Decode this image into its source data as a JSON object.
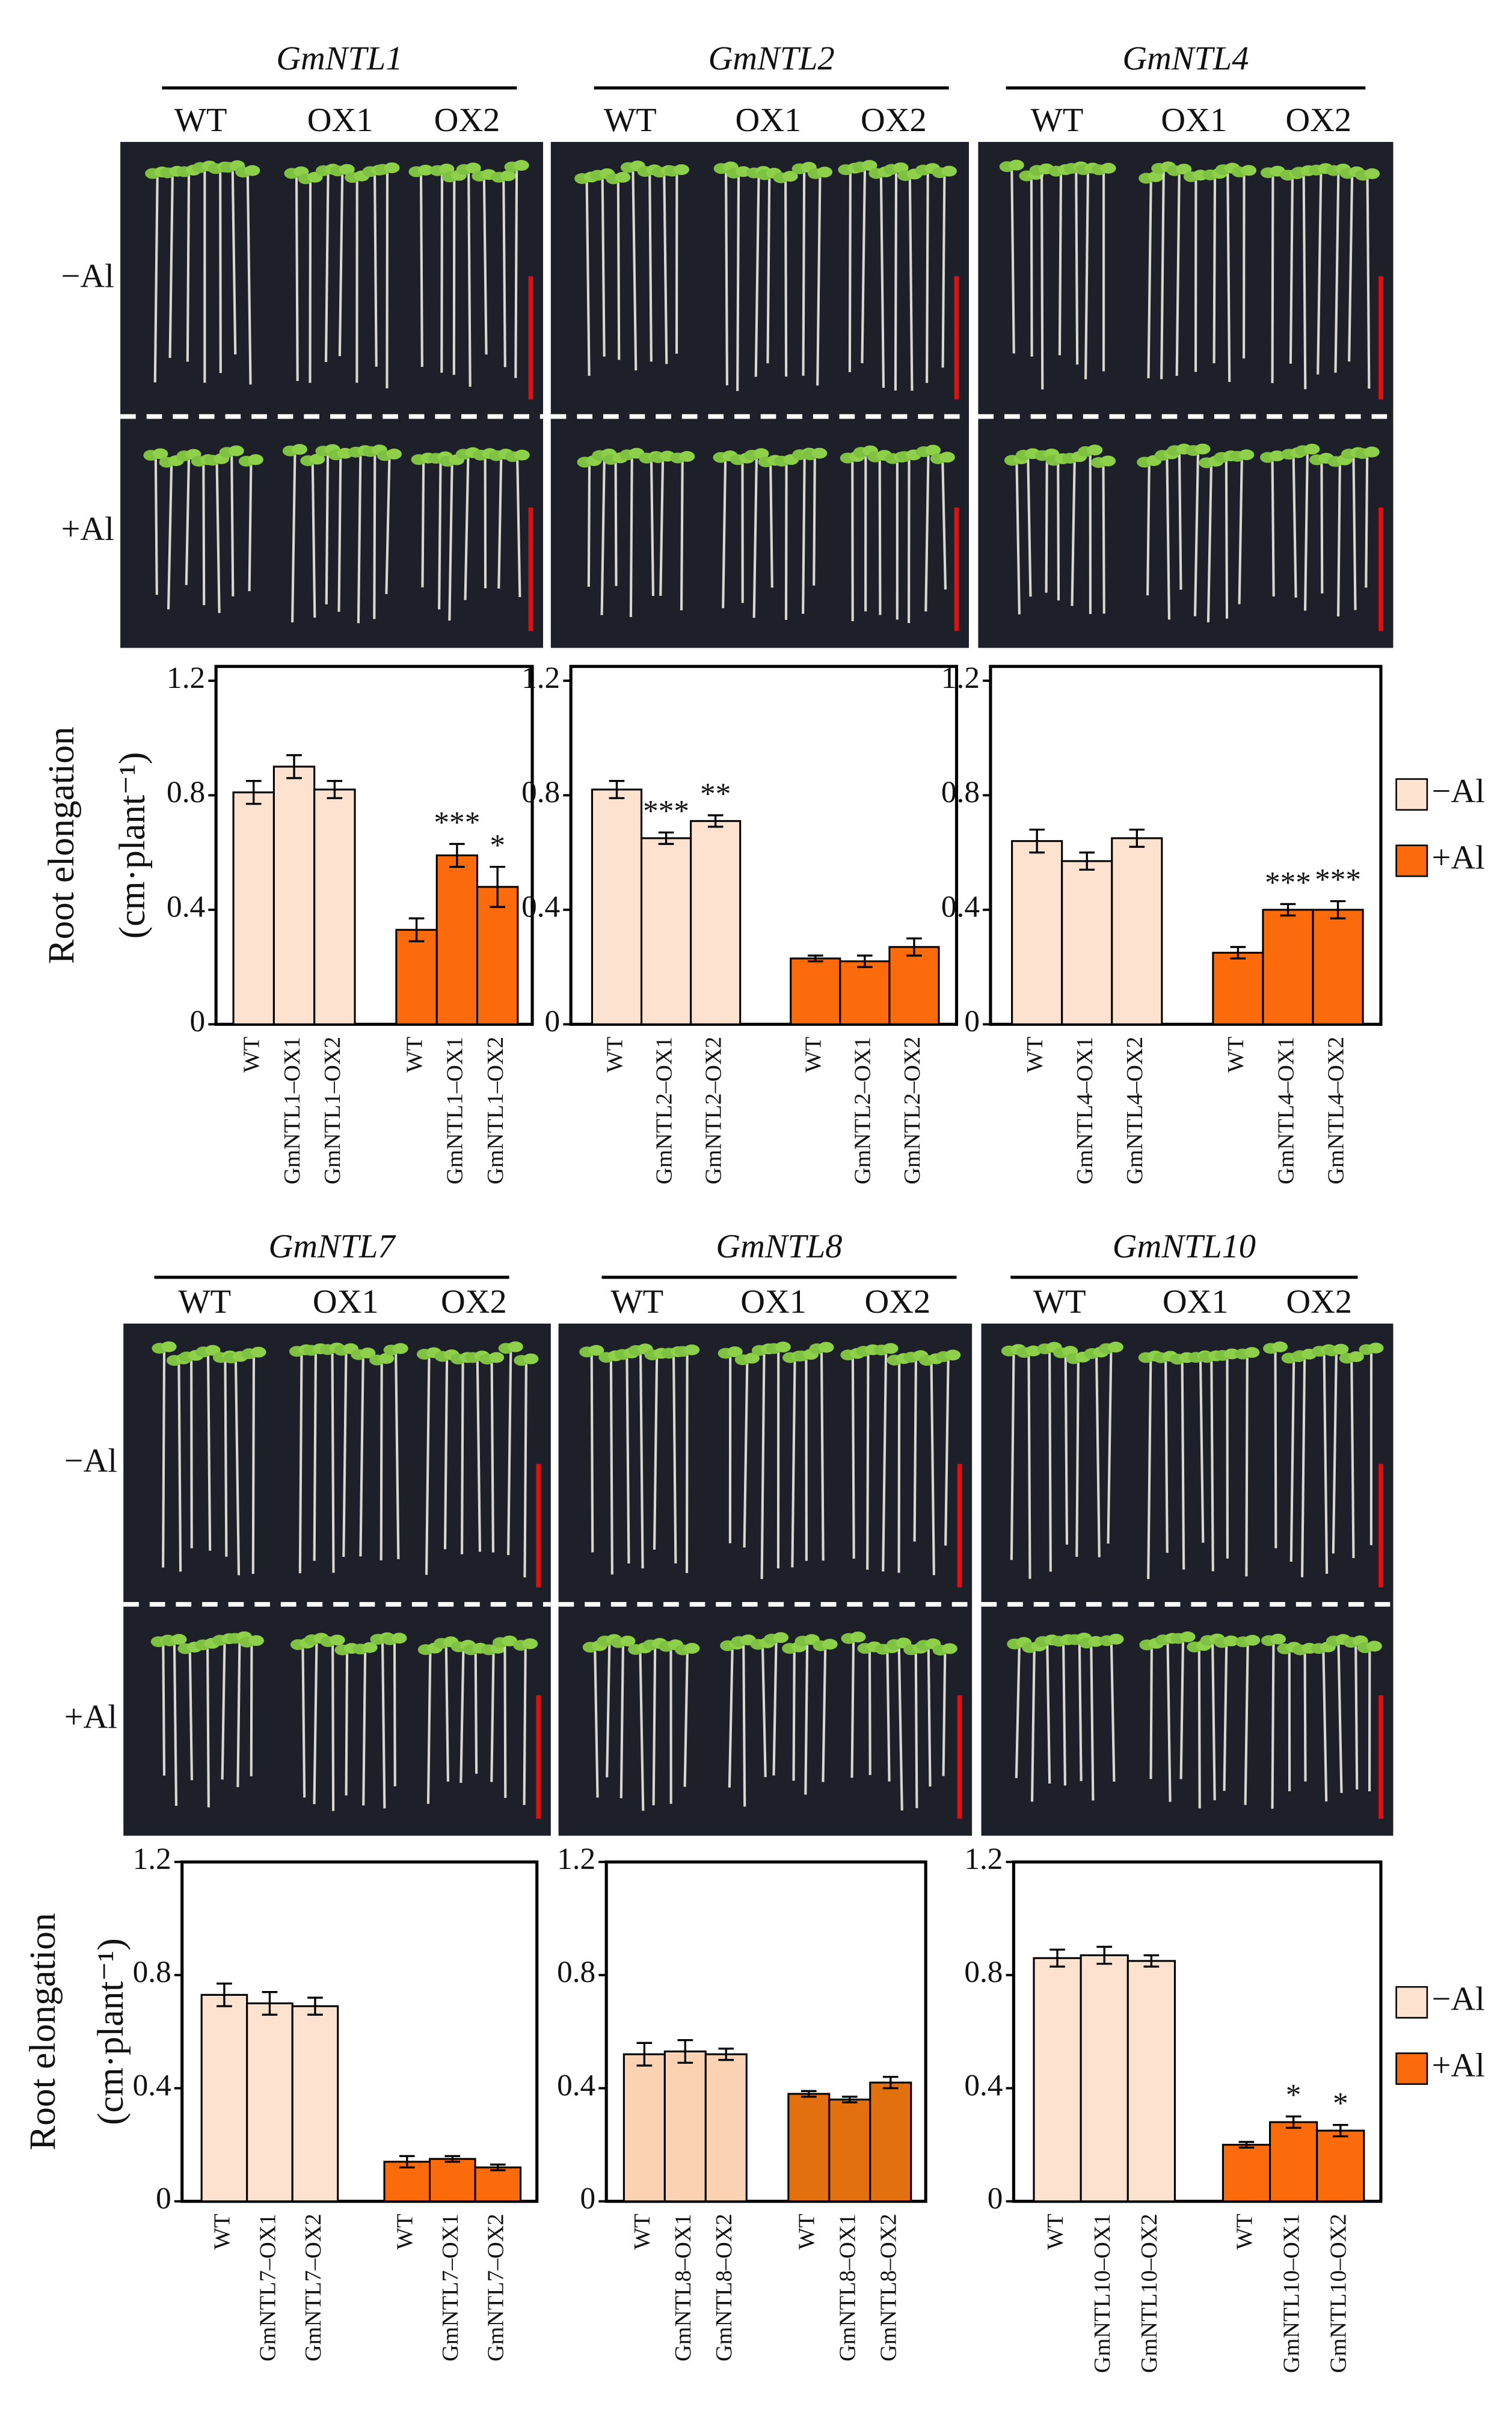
{
  "chart_data": [
    {
      "type": "bar",
      "title": "GmNTL1",
      "photo_labels": [
        "WT",
        "OX1",
        "OX2"
      ],
      "row_labels": [
        "−Al",
        "+Al"
      ],
      "y_label": [
        "Root elongation",
        "(cm·plant⁻¹)"
      ],
      "categories": [
        "WT",
        "GmNTL1–OX1",
        "GmNTL1–OX2"
      ],
      "ylim": [
        0,
        1.25
      ],
      "yticks": [
        0,
        0.4,
        0.8,
        1.2
      ],
      "series": [
        {
          "color": "#fde2cf",
          "values": [
            0.81,
            0.9,
            0.82
          ],
          "errors": [
            0.04,
            0.04,
            0.03
          ],
          "significance": [
            null,
            null,
            null
          ]
        },
        {
          "color": "#fc6b0b",
          "values": [
            0.33,
            0.59,
            0.48
          ],
          "errors": [
            0.04,
            0.04,
            0.07
          ],
          "significance": [
            null,
            "***",
            "*"
          ]
        }
      ]
    },
    {
      "type": "bar",
      "title": "GmNTL2",
      "photo_labels": [
        "WT",
        "OX1",
        "OX2"
      ],
      "categories": [
        "WT",
        "GmNTL2–OX1",
        "GmNTL2–OX2"
      ],
      "ylim": [
        0,
        1.25
      ],
      "yticks": [
        0,
        0.4,
        0.8,
        1.2
      ],
      "series": [
        {
          "color": "#fde2cf",
          "values": [
            0.82,
            0.65,
            0.71
          ],
          "errors": [
            0.03,
            0.02,
            0.02
          ],
          "significance": [
            null,
            "***",
            "**"
          ]
        },
        {
          "color": "#fc6b0b",
          "values": [
            0.23,
            0.22,
            0.27
          ],
          "errors": [
            0.01,
            0.02,
            0.03
          ],
          "significance": [
            null,
            null,
            null
          ]
        }
      ]
    },
    {
      "type": "bar",
      "title": "GmNTL4",
      "photo_labels": [
        "WT",
        "OX1",
        "OX2"
      ],
      "legend": "right",
      "categories": [
        "WT",
        "GmNTL4–OX1",
        "GmNTL4–OX2"
      ],
      "ylim": [
        0,
        1.25
      ],
      "yticks": [
        0,
        0.4,
        0.8,
        1.2
      ],
      "series": [
        {
          "name": "−Al",
          "color": "#fde2cf",
          "values": [
            0.64,
            0.57,
            0.65
          ],
          "errors": [
            0.04,
            0.03,
            0.03
          ],
          "significance": [
            null,
            null,
            null
          ]
        },
        {
          "name": "+Al",
          "color": "#fc6b0b",
          "values": [
            0.25,
            0.4,
            0.4
          ],
          "errors": [
            0.02,
            0.02,
            0.03
          ],
          "significance": [
            null,
            "***",
            "***"
          ]
        }
      ]
    },
    {
      "type": "bar",
      "title": "GmNTL7",
      "photo_labels": [
        "WT",
        "OX1",
        "OX2"
      ],
      "row_labels": [
        "−Al",
        "+Al"
      ],
      "y_label": [
        "Root elongation",
        "(cm·plant⁻¹)"
      ],
      "categories": [
        "WT",
        "GmNTL7–OX1",
        "GmNTL7–OX2"
      ],
      "ylim": [
        0,
        1.2
      ],
      "yticks": [
        0,
        0.4,
        0.8,
        1.2
      ],
      "series": [
        {
          "color": "#fde2cf",
          "values": [
            0.73,
            0.7,
            0.69
          ],
          "errors": [
            0.04,
            0.04,
            0.03
          ],
          "significance": [
            null,
            null,
            null
          ]
        },
        {
          "color": "#fc6b0b",
          "values": [
            0.14,
            0.15,
            0.12
          ],
          "errors": [
            0.02,
            0.01,
            0.01
          ],
          "significance": [
            null,
            null,
            null
          ]
        }
      ]
    },
    {
      "type": "bar",
      "title": "GmNTL8",
      "photo_labels": [
        "WT",
        "OX1",
        "OX2"
      ],
      "categories": [
        "WT",
        "GmNTL8–OX1",
        "GmNTL8–OX2"
      ],
      "ylim": [
        0,
        1.2
      ],
      "yticks": [
        0,
        0.4,
        0.8,
        1.2
      ],
      "series": [
        {
          "color": "#fbd3b2",
          "values": [
            0.52,
            0.53,
            0.52
          ],
          "errors": [
            0.04,
            0.04,
            0.02
          ],
          "significance": [
            null,
            null,
            null
          ]
        },
        {
          "color": "#e2700f",
          "values": [
            0.38,
            0.36,
            0.42
          ],
          "errors": [
            0.01,
            0.01,
            0.02
          ],
          "significance": [
            null,
            null,
            null
          ]
        }
      ]
    },
    {
      "type": "bar",
      "title": "GmNTL10",
      "photo_labels": [
        "WT",
        "OX1",
        "OX2"
      ],
      "legend": "right",
      "categories": [
        "WT",
        "GmNTL10–OX1",
        "GmNTL10–OX2"
      ],
      "ylim": [
        0,
        1.2
      ],
      "yticks": [
        0,
        0.4,
        0.8,
        1.2
      ],
      "series": [
        {
          "name": "−Al",
          "color": "#fde2cf",
          "values": [
            0.86,
            0.87,
            0.85
          ],
          "errors": [
            0.03,
            0.03,
            0.02
          ],
          "significance": [
            null,
            null,
            null
          ]
        },
        {
          "name": "+Al",
          "color": "#fc6b0b",
          "values": [
            0.2,
            0.28,
            0.25
          ],
          "errors": [
            0.01,
            0.02,
            0.02
          ],
          "significance": [
            null,
            "*",
            "*"
          ]
        }
      ]
    }
  ]
}
